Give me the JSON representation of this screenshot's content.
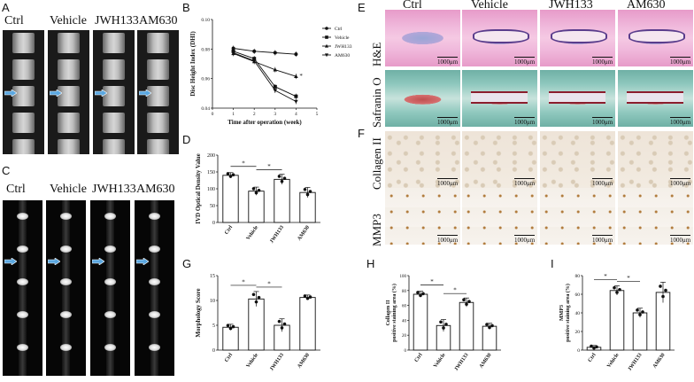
{
  "panels": {
    "A": {
      "label": "A",
      "groups": [
        "Ctrl",
        "Vehicle",
        "JWH133",
        "AM630"
      ]
    },
    "B": {
      "label": "B"
    },
    "C": {
      "label": "C",
      "groups": [
        "Ctrl",
        "Vehicle",
        "JWH133",
        "AM630"
      ]
    },
    "D": {
      "label": "D"
    },
    "E": {
      "label": "E",
      "groups": [
        "Ctrl",
        "Vehicle",
        "JWH133",
        "AM630"
      ],
      "rows": [
        "H&E",
        "Safranin O"
      ]
    },
    "F": {
      "label": "F",
      "rows": [
        "Collagen II",
        "MMP3"
      ]
    },
    "G": {
      "label": "G"
    },
    "H": {
      "label": "H"
    },
    "I": {
      "label": "I"
    },
    "scale_bar": "1000μm"
  },
  "chart_data": [
    {
      "id": "B",
      "type": "line",
      "xlabel": "Time after operation (week)",
      "ylabel": "Disc Height Index (DHI)",
      "xlim": [
        0,
        5
      ],
      "ylim": [
        0.04,
        0.1
      ],
      "xticks": [
        "0",
        "1",
        "2",
        "3",
        "4",
        "5"
      ],
      "yticks": [
        "0.04",
        "0.06",
        "0.08",
        "0.10"
      ],
      "x": [
        1,
        2,
        3,
        4
      ],
      "series": [
        {
          "name": "Ctrl",
          "values": [
            0.0805,
            0.0785,
            0.0775,
            0.0765
          ]
        },
        {
          "name": "Vehicle",
          "values": [
            0.0785,
            0.0735,
            0.0545,
            0.048
          ]
        },
        {
          "name": "JWH133",
          "values": [
            0.077,
            0.0715,
            0.066,
            0.0615
          ]
        },
        {
          "name": "AM630",
          "values": [
            0.0775,
            0.072,
            0.052,
            0.0445
          ]
        }
      ],
      "annotation": "*"
    },
    {
      "id": "D",
      "type": "bar",
      "ylabel": "IVD Optical Density Value",
      "categories": [
        "Ctrl",
        "Vehicle",
        "JWH133",
        "AM630"
      ],
      "values": [
        140,
        93,
        128,
        89
      ],
      "errors": [
        8,
        12,
        15,
        15
      ],
      "ylim": [
        0,
        200
      ],
      "yticks": [
        "0",
        "50",
        "100",
        "150",
        "200"
      ],
      "significance": [
        "*",
        "*"
      ]
    },
    {
      "id": "G",
      "type": "bar",
      "ylabel": "Morphology Score",
      "categories": [
        "Ctrl",
        "Vehicle",
        "JWH133",
        "AM630"
      ],
      "values": [
        4.6,
        10.3,
        5.0,
        10.6
      ],
      "errors": [
        0.6,
        1.5,
        1.3,
        0.5
      ],
      "ylim": [
        0,
        15
      ],
      "yticks": [
        "0",
        "5",
        "10",
        "15"
      ],
      "significance": [
        "*",
        "*"
      ]
    },
    {
      "id": "H",
      "type": "bar",
      "ylabel": "Collagen II positive staining area (%)",
      "categories": [
        "Ctrl",
        "Vehicle",
        "JWH133",
        "AM630"
      ],
      "values": [
        75,
        33,
        64,
        32
      ],
      "errors": [
        4,
        8,
        6,
        4
      ],
      "ylim": [
        0,
        100
      ],
      "yticks": [
        "0",
        "20",
        "40",
        "60",
        "80",
        "100"
      ],
      "significance": [
        "*",
        "*"
      ]
    },
    {
      "id": "I",
      "type": "bar",
      "ylabel": "MMP3 positive staining area (%)",
      "categories": [
        "Ctrl",
        "Vehicle",
        "JWH133",
        "AM630"
      ],
      "values": [
        3,
        64,
        40,
        62
      ],
      "errors": [
        2,
        5,
        5,
        11
      ],
      "ylim": [
        0,
        80
      ],
      "yticks": [
        "0",
        "20",
        "40",
        "60",
        "80"
      ],
      "significance": [
        "*",
        "*"
      ]
    }
  ]
}
